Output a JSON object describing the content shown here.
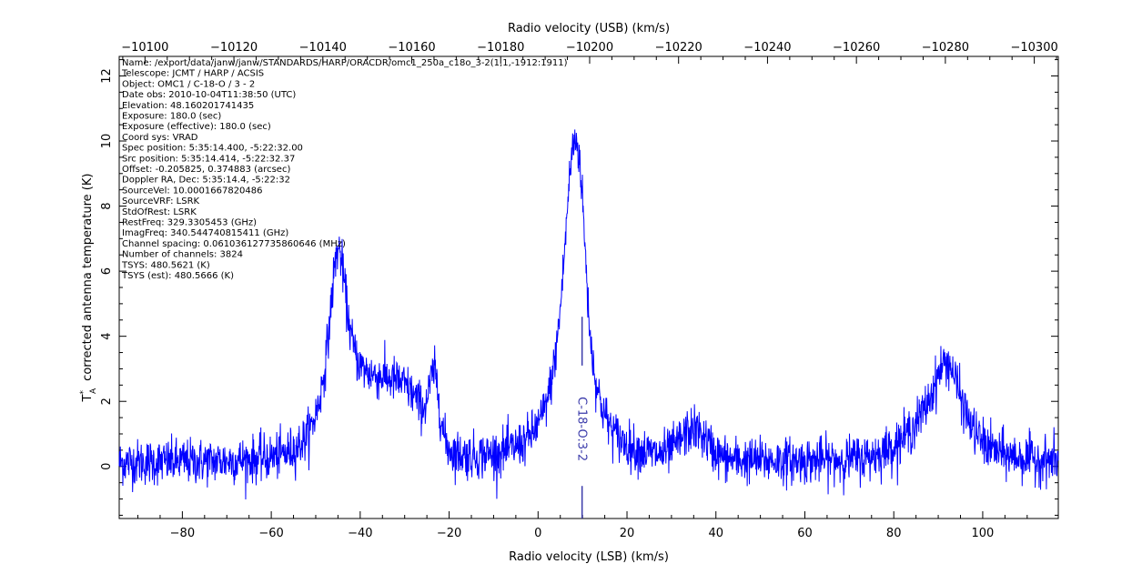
{
  "chart_data": {
    "type": "line",
    "title": "",
    "xlabel": "Radio velocity (LSB) (km/s)",
    "xlabel_top": "Radio velocity (USB) (km/s)",
    "ylabel_main": "corrected antenna temperature (K)",
    "ylabel_symbol": "T",
    "ylabel_sup": "*",
    "ylabel_sub": "A",
    "xlim": [
      -94.2,
      117.0
    ],
    "ylim": [
      -1.6,
      12.6
    ],
    "xlim_top": [
      -10094.2,
      -10305.4
    ],
    "x_ticks": [
      -80,
      -60,
      -40,
      -20,
      0,
      20,
      40,
      60,
      80,
      100
    ],
    "x_tick_labels": [
      "−80",
      "−60",
      "−40",
      "−20",
      "0",
      "20",
      "40",
      "60",
      "80",
      "100"
    ],
    "x_top_ticks": [
      -10100,
      -10120,
      -10140,
      -10160,
      -10180,
      -10200,
      -10220,
      -10240,
      -10260,
      -10280,
      -10300
    ],
    "x_top_tick_labels": [
      "−10100",
      "−10120",
      "−10140",
      "−10160",
      "−10180",
      "−10200",
      "−10220",
      "−10240",
      "−10260",
      "−10280",
      "−10300"
    ],
    "y_ticks": [
      0,
      2,
      4,
      6,
      8,
      10,
      12
    ],
    "y_tick_labels": [
      "0",
      "2",
      "4",
      "6",
      "8",
      "10",
      "12"
    ],
    "grid": false,
    "line_color": "#0000ff",
    "noise_sigma": 0.35,
    "baseline": 0.1,
    "components": [
      {
        "center": -45.0,
        "amplitude": 5.6,
        "width": 2.6,
        "shape": "lorentzian"
      },
      {
        "center": -36.0,
        "amplitude": 2.1,
        "width": 7.0,
        "shape": "gaussian"
      },
      {
        "center": -23.3,
        "amplitude": 1.8,
        "width": 1.1,
        "shape": "gaussian"
      },
      {
        "center": -28.0,
        "amplitude": 0.8,
        "width": 4.0,
        "shape": "gaussian"
      },
      {
        "center": 8.0,
        "amplitude": 9.5,
        "width": 3.0,
        "shape": "lorentzian"
      },
      {
        "center": 9.8,
        "amplitude": 1.5,
        "width": 1.0,
        "shape": "gaussian"
      },
      {
        "center": 35.0,
        "amplitude": 0.9,
        "width": 3.0,
        "shape": "gaussian"
      },
      {
        "center": 92.0,
        "amplitude": 2.6,
        "width": 4.2,
        "shape": "lorentzian"
      },
      {
        "center": 88.0,
        "amplitude": 0.6,
        "width": 6.0,
        "shape": "gaussian"
      }
    ],
    "annotations": [
      {
        "text": "C-18-O:3-2",
        "x": 9.9
      }
    ],
    "metadata_lines": [
      "Name: /export/data/janw/janw/STANDARDS/HARP/ORACDR/omc1_250a_c18o_3-2(1,1,-1912:1911)",
      "Telescope: JCMT / HARP / ACSIS",
      "Object: OMC1 / C-18-O / 3 - 2",
      "Date obs: 2010-10-04T11:38:50 (UTC)",
      "Elevation: 48.160201741435",
      "Exposure: 180.0 (sec)",
      "Exposure (effective): 180.0 (sec)",
      "Coord sys: VRAD",
      "Spec position: 5:35:14.400, -5:22:32.00",
      "Src position: 5:35:14.414, -5:22:32.37",
      "Offset: -0.205825, 0.374883 (arcsec)",
      "Doppler RA, Dec: 5:35:14.4, -5:22:32",
      "SourceVel: 10.0001667820486",
      "SourceVRF: LSRK",
      "StdOfRest: LSRK",
      "RestFreq: 329.3305453 (GHz)",
      "ImagFreq: 340.544740815411 (GHz)",
      "Channel spacing: 0.0610361277358606​46 (MHz)",
      "Number of channels: 3824",
      "TSYS: 480.5621 (K)",
      "TSYS (est): 480.5666 (K)"
    ]
  }
}
